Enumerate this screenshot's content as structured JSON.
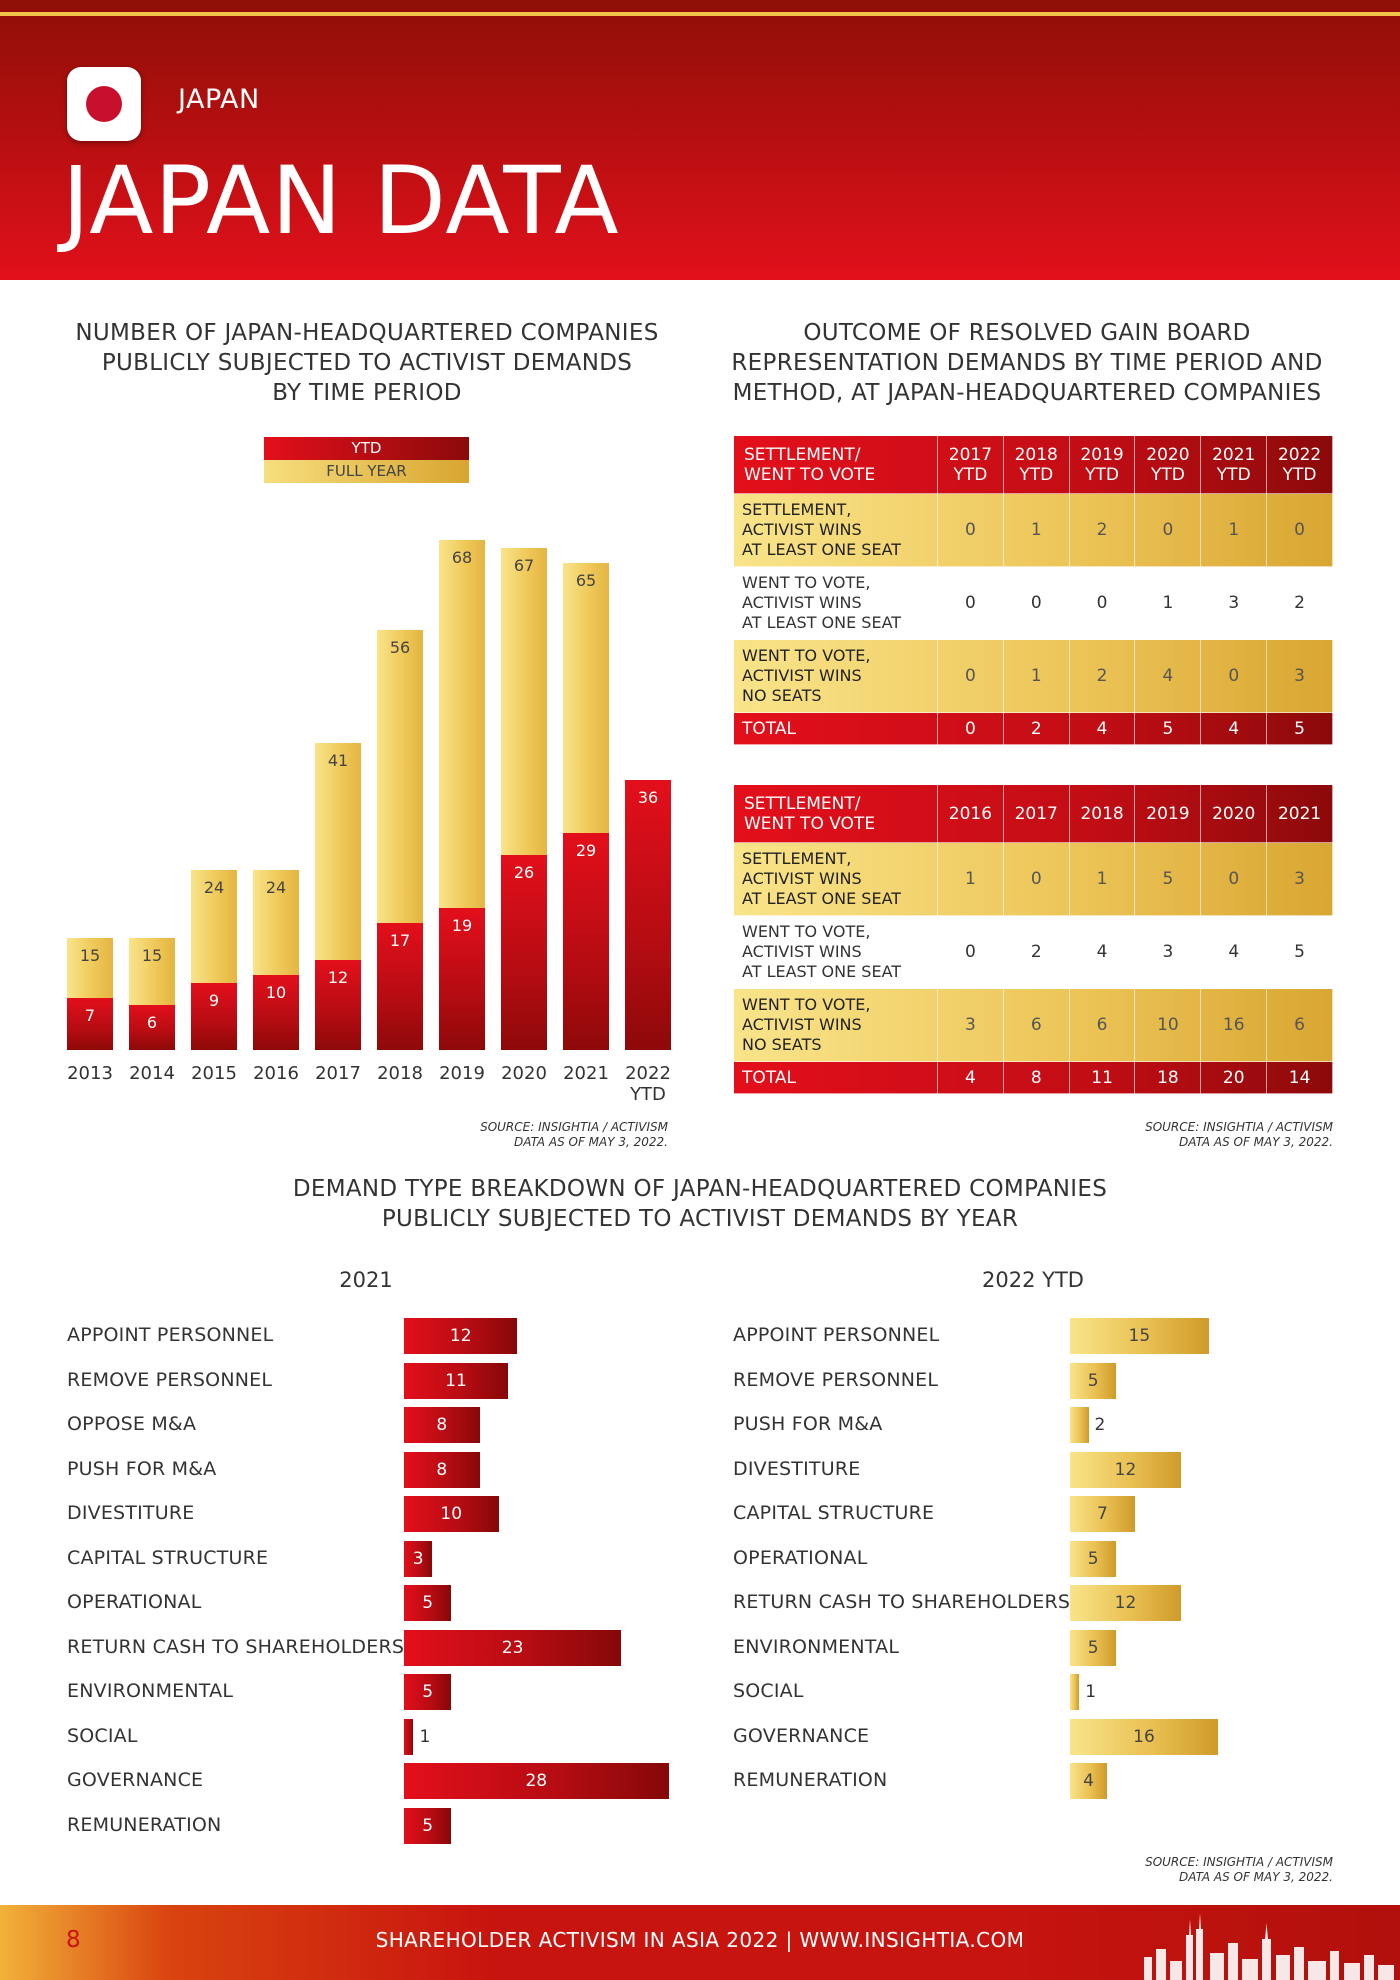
{
  "header": {
    "country": "JAPAN",
    "title": "JAPAN DATA"
  },
  "colors": {
    "red": "#e30f1b",
    "dark_red": "#8c0a0a",
    "gold_light": "#f9e48a",
    "gold_dark": "#d9a632"
  },
  "column_chart": {
    "title_lines": [
      "NUMBER OF JAPAN-HEADQUARTERED COMPANIES",
      "PUBLICLY SUBJECTED TO ACTIVIST DEMANDS",
      "BY TIME PERIOD"
    ],
    "legend_ytd": "YTD",
    "legend_full_year": "FULL YEAR",
    "source_lines": [
      "SOURCE: INSIGHTIA / ACTIVISM",
      "DATA AS OF MAY 3, 2022."
    ]
  },
  "table_section": {
    "title_lines": [
      "OUTCOME OF RESOLVED GAIN BOARD",
      "REPRESENTATION DEMANDS BY TIME PERIOD AND",
      "METHOD, AT JAPAN-HEADQUARTERED COMPANIES"
    ],
    "source_lines": [
      "SOURCE: INSIGHTIA / ACTIVISM",
      "DATA AS OF MAY 3, 2022."
    ]
  },
  "demand_section": {
    "title_lines": [
      "DEMAND TYPE BREAKDOWN OF JAPAN-HEADQUARTERED COMPANIES",
      "PUBLICLY SUBJECTED TO ACTIVIST DEMANDS BY YEAR"
    ],
    "source_lines": [
      "SOURCE: INSIGHTIA / ACTIVISM",
      "DATA AS OF MAY 3, 2022."
    ]
  },
  "footer": {
    "page_number": "8",
    "text": "SHAREHOLDER ACTIVISM IN ASIA 2022 | WWW.INSIGHTIA.COM"
  },
  "chart_data": [
    {
      "type": "bar",
      "title": "NUMBER OF JAPAN-HEADQUARTERED COMPANIES PUBLICLY SUBJECTED TO ACTIVIST DEMANDS BY TIME PERIOD",
      "categories": [
        "2013",
        "2014",
        "2015",
        "2016",
        "2017",
        "2018",
        "2019",
        "2020",
        "2021",
        "2022 YTD"
      ],
      "series": [
        {
          "name": "YTD",
          "values": [
            7,
            6,
            9,
            10,
            12,
            17,
            19,
            26,
            29,
            36
          ]
        },
        {
          "name": "FULL YEAR",
          "values": [
            15,
            15,
            24,
            24,
            41,
            56,
            68,
            67,
            65,
            null
          ]
        }
      ],
      "ylim": [
        0,
        70
      ],
      "legend": "top-center"
    },
    {
      "type": "table",
      "columns": [
        "SETTLEMENT/ WENT TO VOTE",
        "2017 YTD",
        "2018 YTD",
        "2019 YTD",
        "2020 YTD",
        "2021 YTD",
        "2022 YTD"
      ],
      "rows": [
        {
          "label": "SETTLEMENT, ACTIVIST WINS AT LEAST ONE SEAT",
          "values": [
            "0",
            "1",
            "2",
            "0",
            "1",
            "0"
          ]
        },
        {
          "label": "WENT TO VOTE, ACTIVIST WINS AT LEAST ONE SEAT",
          "values": [
            "0",
            "0",
            "0",
            "1",
            "3",
            "2"
          ]
        },
        {
          "label": "WENT TO VOTE, ACTIVIST WINS NO SEATS",
          "values": [
            "0",
            "1",
            "2",
            "4",
            "0",
            "3"
          ]
        },
        {
          "label": "TOTAL",
          "values": [
            "0",
            "2",
            "4",
            "5",
            "4",
            "5"
          ]
        }
      ]
    },
    {
      "type": "table",
      "columns": [
        "SETTLEMENT/ WENT TO VOTE",
        "2016",
        "2017",
        "2018",
        "2019",
        "2020",
        "2021"
      ],
      "rows": [
        {
          "label": "SETTLEMENT, ACTIVIST WINS AT LEAST ONE SEAT",
          "values": [
            "1",
            "0",
            "1",
            "5",
            "0",
            "3"
          ]
        },
        {
          "label": "WENT TO VOTE, ACTIVIST WINS AT LEAST ONE SEAT",
          "values": [
            "0",
            "2",
            "4",
            "3",
            "4",
            "5"
          ]
        },
        {
          "label": "WENT TO VOTE, ACTIVIST WINS NO SEATS",
          "values": [
            "3",
            "6",
            "6",
            "10",
            "16",
            "6"
          ]
        },
        {
          "label": "TOTAL",
          "values": [
            "4",
            "8",
            "11",
            "18",
            "20",
            "14"
          ]
        }
      ]
    },
    {
      "type": "bar",
      "orientation": "horizontal",
      "title": "2021",
      "categories": [
        "APPOINT PERSONNEL",
        "REMOVE PERSONNEL",
        "OPPOSE M&A",
        "PUSH FOR M&A",
        "DIVESTITURE",
        "CAPITAL STRUCTURE",
        "OPERATIONAL",
        "RETURN CASH TO SHAREHOLDERS",
        "ENVIRONMENTAL",
        "SOCIAL",
        "GOVERNANCE",
        "REMUNERATION"
      ],
      "values": [
        12,
        11,
        8,
        8,
        10,
        3,
        5,
        23,
        5,
        1,
        28,
        5
      ]
    },
    {
      "type": "bar",
      "orientation": "horizontal",
      "title": "2022 YTD",
      "categories": [
        "APPOINT PERSONNEL",
        "REMOVE PERSONNEL",
        "PUSH FOR M&A",
        "DIVESTITURE",
        "CAPITAL STRUCTURE",
        "OPERATIONAL",
        "RETURN CASH TO SHAREHOLDERS",
        "ENVIRONMENTAL",
        "SOCIAL",
        "GOVERNANCE",
        "REMUNERATION"
      ],
      "values": [
        15,
        5,
        2,
        12,
        7,
        5,
        12,
        5,
        1,
        16,
        4
      ]
    }
  ]
}
